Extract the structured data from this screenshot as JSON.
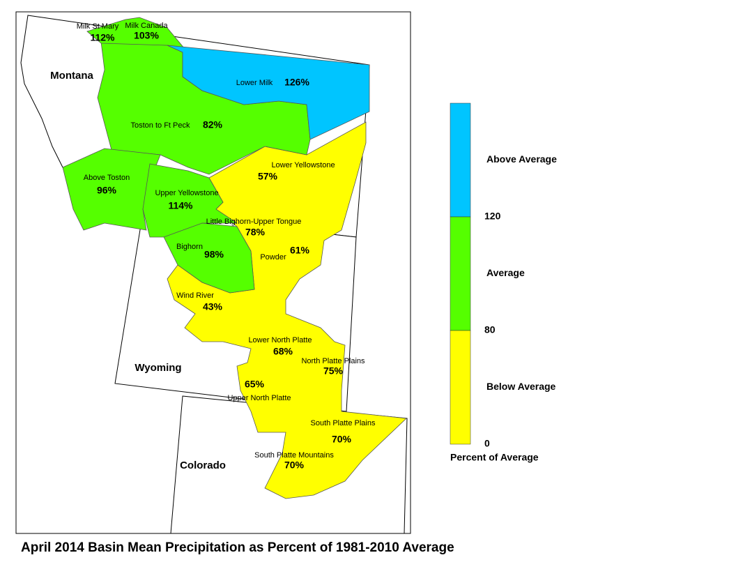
{
  "title": "April 2014 Basin Mean Precipitation as Percent of 1981-2010 Average",
  "states": [
    "Montana",
    "Wyoming",
    "Colorado"
  ],
  "basins": [
    {
      "name": "Milk St Mary",
      "percent": "112%"
    },
    {
      "name": "Milk Canada",
      "percent": "103%"
    },
    {
      "name": "Lower Milk",
      "percent": "126%"
    },
    {
      "name": "Toston to Ft Peck",
      "percent": "82%"
    },
    {
      "name": "Above Toston",
      "percent": "96%"
    },
    {
      "name": "Upper Yellowstone",
      "percent": "114%"
    },
    {
      "name": "Lower Yellowstone",
      "percent": "57%"
    },
    {
      "name": "Little Bighorn-Upper Tongue",
      "percent": "78%"
    },
    {
      "name": "Bighorn",
      "percent": "98%"
    },
    {
      "name": "Powder",
      "percent": "61%"
    },
    {
      "name": "Wind River",
      "percent": "43%"
    },
    {
      "name": "Lower North Platte",
      "percent": "68%"
    },
    {
      "name": "North Platte Plains",
      "percent": "75%"
    },
    {
      "name": "Upper North Platte",
      "percent": "65%"
    },
    {
      "name": "South Platte Plains",
      "percent": "70%"
    },
    {
      "name": "South Platte Mountains",
      "percent": "70%"
    }
  ],
  "legend": {
    "classes": [
      {
        "label": "Above Average",
        "color": "#00c5ff"
      },
      {
        "label": "Average",
        "color": "#55ff00"
      },
      {
        "label": "Below Average",
        "color": "#ffff00"
      }
    ],
    "breaks": [
      "120",
      "80",
      "0"
    ],
    "caption": "Percent of Average"
  }
}
